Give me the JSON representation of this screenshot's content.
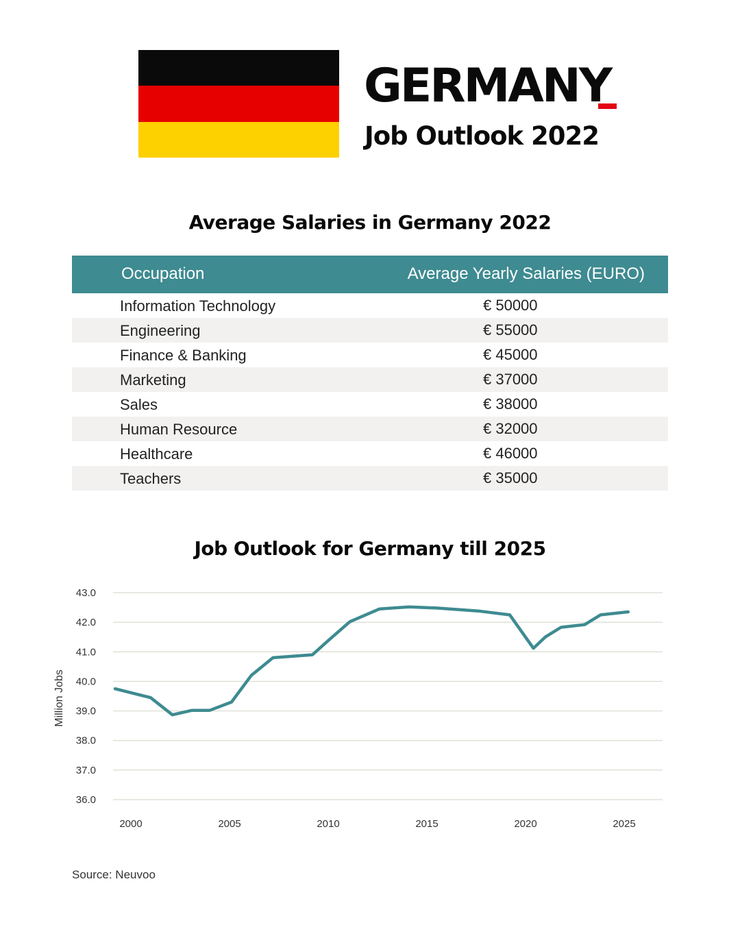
{
  "header": {
    "title": "GERMANY",
    "subtitle": "Job Outlook 2022",
    "flag": {
      "colors": [
        "#0a0a0a",
        "#e60000",
        "#fdd000"
      ]
    },
    "accent_color": "#e30613"
  },
  "salaries": {
    "title": "Average Salaries in Germany 2022",
    "header_color": "#3e8b91",
    "columns": [
      "Occupation",
      "Average Yearly Salaries (EURO)"
    ],
    "rows": [
      {
        "occupation": "Information Technology",
        "salary": "€ 50000"
      },
      {
        "occupation": "Engineering",
        "salary": "€ 55000"
      },
      {
        "occupation": "Finance & Banking",
        "salary": "€ 45000"
      },
      {
        "occupation": "Marketing",
        "salary": "€ 37000"
      },
      {
        "occupation": "Sales",
        "salary": "€ 38000"
      },
      {
        "occupation": "Human Resource",
        "salary": "€ 32000"
      },
      {
        "occupation": "Healthcare",
        "salary": "€ 46000"
      },
      {
        "occupation": "Teachers",
        "salary": "€ 35000"
      }
    ]
  },
  "chart_data": {
    "type": "line",
    "title": "Job Outlook for Germany till 2025",
    "xlabel": "",
    "ylabel": "Million Jobs",
    "ylim": [
      36.0,
      43.0
    ],
    "xlim": [
      1999,
      2027
    ],
    "yticks": [
      "36.0",
      "37.0",
      "38.0",
      "39.0",
      "40.0",
      "41.0",
      "42.0",
      "43.0"
    ],
    "xticks": [
      "2000",
      "2005",
      "2010",
      "2015",
      "2020",
      "2025"
    ],
    "grid": true,
    "line_color": "#3e8b91",
    "x": [
      1999.2,
      2001,
      2002.1,
      2003.1,
      2004,
      2005.1,
      2006.1,
      2007.2,
      2009.2,
      2010,
      2011.1,
      2012.6,
      2014.1,
      2015.5,
      2017.6,
      2019.2,
      2020.4,
      2021,
      2021.8,
      2023,
      2023.8,
      2025.2
    ],
    "y": [
      39.75,
      39.45,
      38.87,
      39.02,
      39.02,
      39.3,
      40.2,
      40.8,
      40.9,
      41.38,
      42.02,
      42.45,
      42.52,
      42.48,
      42.38,
      42.25,
      41.12,
      41.5,
      41.83,
      41.92,
      42.25,
      42.35
    ]
  },
  "source": "Source: Neuvoo"
}
